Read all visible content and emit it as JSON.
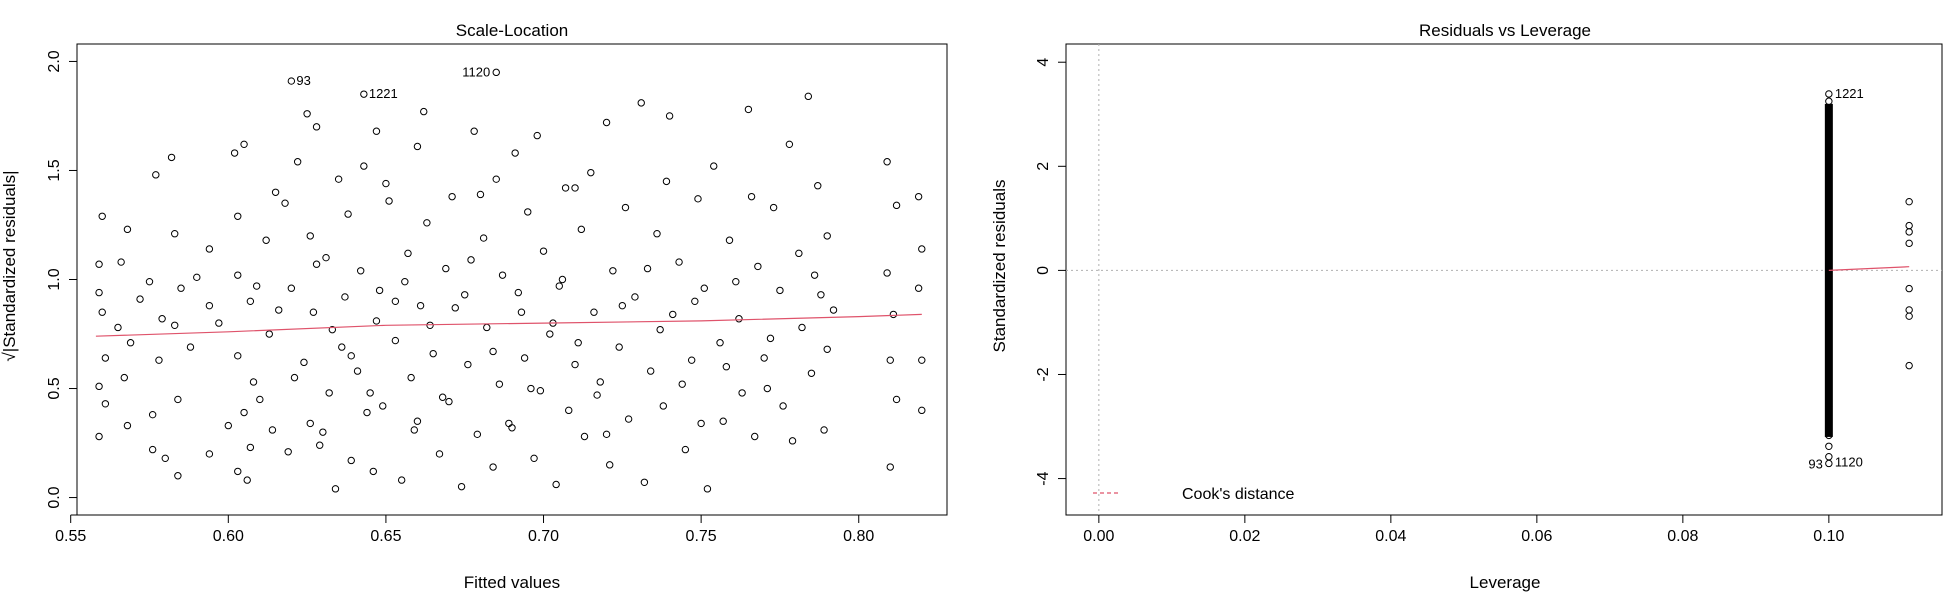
{
  "chart_data": [
    {
      "type": "scatter",
      "title": "Scale-Location",
      "xlabel": "Fitted values",
      "ylabel": "√|Standardized residuals|",
      "xlim": [
        0.552,
        0.828
      ],
      "ylim": [
        -0.08,
        2.08
      ],
      "xticks": [
        0.55,
        0.6,
        0.65,
        0.7,
        0.75,
        0.8
      ],
      "xtick_labels": [
        "0.55",
        "0.60",
        "0.65",
        "0.70",
        "0.75",
        "0.80"
      ],
      "yticks": [
        0.0,
        0.5,
        1.0,
        1.5,
        2.0
      ],
      "ytick_labels": [
        "0.0",
        "0.5",
        "1.0",
        "1.5",
        "2.0"
      ],
      "grid": false,
      "series": [
        {
          "points": [
            [
              0.559,
              1.07
            ],
            [
              0.559,
              0.94
            ],
            [
              0.559,
              0.51
            ],
            [
              0.559,
              0.28
            ],
            [
              0.56,
              1.29
            ],
            [
              0.56,
              0.85
            ],
            [
              0.561,
              0.64
            ],
            [
              0.561,
              0.43
            ],
            [
              0.566,
              1.08
            ],
            [
              0.567,
              0.55
            ],
            [
              0.568,
              0.33
            ],
            [
              0.568,
              1.23
            ],
            [
              0.569,
              0.71
            ],
            [
              0.575,
              0.99
            ],
            [
              0.576,
              0.38
            ],
            [
              0.576,
              0.22
            ],
            [
              0.577,
              1.48
            ],
            [
              0.578,
              0.63
            ],
            [
              0.579,
              0.82
            ],
            [
              0.58,
              0.18
            ],
            [
              0.582,
              1.56
            ],
            [
              0.583,
              1.21
            ],
            [
              0.583,
              0.79
            ],
            [
              0.584,
              0.45
            ],
            [
              0.584,
              0.1
            ],
            [
              0.585,
              0.96
            ],
            [
              0.594,
              1.14
            ],
            [
              0.594,
              0.88
            ],
            [
              0.594,
              0.2
            ],
            [
              0.602,
              1.58
            ],
            [
              0.603,
              1.29
            ],
            [
              0.603,
              1.02
            ],
            [
              0.603,
              0.65
            ],
            [
              0.603,
              0.12
            ],
            [
              0.605,
              1.62
            ],
            [
              0.605,
              0.39
            ],
            [
              0.606,
              0.08
            ],
            [
              0.607,
              0.9
            ],
            [
              0.607,
              0.23
            ],
            [
              0.608,
              0.53
            ],
            [
              0.612,
              1.18
            ],
            [
              0.613,
              0.75
            ],
            [
              0.614,
              0.31
            ],
            [
              0.618,
              1.35
            ],
            [
              0.619,
              0.21
            ],
            [
              0.62,
              0.96
            ],
            [
              0.621,
              0.55
            ],
            [
              0.622,
              1.54
            ],
            [
              0.624,
              0.62
            ],
            [
              0.625,
              1.76
            ],
            [
              0.626,
              1.2
            ],
            [
              0.626,
              0.34
            ],
            [
              0.627,
              0.85
            ],
            [
              0.628,
              1.7
            ],
            [
              0.629,
              0.24
            ],
            [
              0.631,
              1.1
            ],
            [
              0.632,
              0.48
            ],
            [
              0.634,
              0.04
            ],
            [
              0.635,
              1.46
            ],
            [
              0.636,
              0.69
            ],
            [
              0.637,
              0.92
            ],
            [
              0.638,
              1.3
            ],
            [
              0.639,
              0.17
            ],
            [
              0.641,
              0.58
            ],
            [
              0.642,
              1.04
            ],
            [
              0.643,
              1.52
            ],
            [
              0.644,
              0.39
            ],
            [
              0.646,
              0.12
            ],
            [
              0.647,
              0.81
            ],
            [
              0.647,
              1.68
            ],
            [
              0.648,
              0.95
            ],
            [
              0.649,
              0.42
            ],
            [
              0.651,
              1.36
            ],
            [
              0.653,
              0.72
            ],
            [
              0.655,
              0.08
            ],
            [
              0.657,
              1.12
            ],
            [
              0.658,
              0.55
            ],
            [
              0.659,
              0.31
            ],
            [
              0.66,
              1.61
            ],
            [
              0.661,
              0.88
            ],
            [
              0.662,
              1.77
            ],
            [
              0.663,
              1.26
            ],
            [
              0.665,
              0.66
            ],
            [
              0.667,
              0.2
            ],
            [
              0.669,
              1.05
            ],
            [
              0.67,
              0.44
            ],
            [
              0.671,
              1.38
            ],
            [
              0.674,
              0.05
            ],
            [
              0.675,
              0.93
            ],
            [
              0.676,
              0.61
            ],
            [
              0.678,
              1.68
            ],
            [
              0.679,
              0.29
            ],
            [
              0.681,
              1.19
            ],
            [
              0.682,
              0.78
            ],
            [
              0.684,
              0.14
            ],
            [
              0.685,
              1.46
            ],
            [
              0.686,
              0.52
            ],
            [
              0.687,
              1.02
            ],
            [
              0.689,
              0.34
            ],
            [
              0.691,
              1.58
            ],
            [
              0.693,
              0.85
            ],
            [
              0.694,
              0.64
            ],
            [
              0.695,
              1.31
            ],
            [
              0.697,
              0.18
            ],
            [
              0.698,
              1.66
            ],
            [
              0.699,
              0.49
            ],
            [
              0.7,
              1.13
            ],
            [
              0.702,
              0.75
            ],
            [
              0.704,
              0.06
            ],
            [
              0.705,
              0.97
            ],
            [
              0.707,
              1.42
            ],
            [
              0.708,
              0.4
            ],
            [
              0.71,
              0.61
            ],
            [
              0.712,
              1.23
            ],
            [
              0.713,
              0.28
            ],
            [
              0.715,
              1.49
            ],
            [
              0.716,
              0.85
            ],
            [
              0.718,
              0.53
            ],
            [
              0.72,
              1.72
            ],
            [
              0.721,
              0.15
            ],
            [
              0.722,
              1.04
            ],
            [
              0.724,
              0.69
            ],
            [
              0.726,
              1.33
            ],
            [
              0.727,
              0.36
            ],
            [
              0.729,
              0.92
            ],
            [
              0.731,
              1.81
            ],
            [
              0.732,
              0.07
            ],
            [
              0.734,
              0.58
            ],
            [
              0.736,
              1.21
            ],
            [
              0.738,
              0.42
            ],
            [
              0.74,
              1.75
            ],
            [
              0.741,
              0.84
            ],
            [
              0.743,
              1.08
            ],
            [
              0.745,
              0.22
            ],
            [
              0.747,
              0.63
            ],
            [
              0.749,
              1.37
            ],
            [
              0.751,
              0.96
            ],
            [
              0.752,
              0.04
            ],
            [
              0.754,
              1.52
            ],
            [
              0.756,
              0.71
            ],
            [
              0.757,
              0.35
            ],
            [
              0.759,
              1.18
            ],
            [
              0.762,
              0.82
            ],
            [
              0.763,
              0.48
            ],
            [
              0.765,
              1.78
            ],
            [
              0.767,
              0.28
            ],
            [
              0.768,
              1.06
            ],
            [
              0.77,
              0.64
            ],
            [
              0.773,
              1.33
            ],
            [
              0.775,
              0.95
            ],
            [
              0.776,
              0.42
            ],
            [
              0.778,
              1.62
            ],
            [
              0.779,
              0.26
            ],
            [
              0.781,
              1.12
            ],
            [
              0.782,
              0.78
            ],
            [
              0.784,
              1.84
            ],
            [
              0.785,
              0.57
            ],
            [
              0.787,
              1.43
            ],
            [
              0.788,
              0.93
            ],
            [
              0.789,
              0.31
            ],
            [
              0.79,
              1.2
            ],
            [
              0.79,
              0.68
            ],
            [
              0.809,
              1.54
            ],
            [
              0.809,
              1.03
            ],
            [
              0.81,
              0.63
            ],
            [
              0.81,
              0.14
            ],
            [
              0.811,
              0.84
            ],
            [
              0.812,
              1.34
            ],
            [
              0.812,
              0.45
            ],
            [
              0.819,
              1.38
            ],
            [
              0.819,
              0.96
            ],
            [
              0.82,
              0.63
            ],
            [
              0.82,
              0.4
            ],
            [
              0.82,
              1.14
            ],
            [
              0.62,
              1.91
            ],
            [
              0.643,
              1.85
            ],
            [
              0.685,
              1.95
            ],
            [
              0.565,
              0.78
            ],
            [
              0.572,
              0.91
            ],
            [
              0.588,
              0.69
            ],
            [
              0.597,
              0.8
            ],
            [
              0.609,
              0.97
            ],
            [
              0.616,
              0.86
            ],
            [
              0.633,
              0.77
            ],
            [
              0.639,
              0.65
            ],
            [
              0.653,
              0.9
            ],
            [
              0.664,
              0.79
            ],
            [
              0.672,
              0.87
            ],
            [
              0.684,
              0.67
            ],
            [
              0.692,
              0.94
            ],
            [
              0.703,
              0.8
            ],
            [
              0.711,
              0.71
            ],
            [
              0.725,
              0.88
            ],
            [
              0.737,
              0.77
            ],
            [
              0.748,
              0.9
            ],
            [
              0.758,
              0.6
            ],
            [
              0.772,
              0.73
            ],
            [
              0.792,
              0.86
            ],
            [
              0.59,
              1.01
            ],
            [
              0.628,
              1.07
            ],
            [
              0.656,
              0.99
            ],
            [
              0.677,
              1.09
            ],
            [
              0.706,
              1.0
            ],
            [
              0.733,
              1.05
            ],
            [
              0.761,
              0.99
            ],
            [
              0.786,
              1.02
            ],
            [
              0.61,
              0.45
            ],
            [
              0.645,
              0.48
            ],
            [
              0.668,
              0.46
            ],
            [
              0.696,
              0.5
            ],
            [
              0.717,
              0.47
            ],
            [
              0.744,
              0.52
            ],
            [
              0.771,
              0.5
            ],
            [
              0.6,
              0.33
            ],
            [
              0.63,
              0.3
            ],
            [
              0.66,
              0.35
            ],
            [
              0.69,
              0.32
            ],
            [
              0.72,
              0.29
            ],
            [
              0.75,
              0.34
            ],
            [
              0.615,
              1.4
            ],
            [
              0.65,
              1.44
            ],
            [
              0.68,
              1.39
            ],
            [
              0.71,
              1.42
            ],
            [
              0.739,
              1.45
            ],
            [
              0.766,
              1.38
            ]
          ]
        }
      ],
      "smoother": {
        "x": [
          0.558,
          0.6,
          0.65,
          0.7,
          0.75,
          0.8,
          0.82
        ],
        "y": [
          0.74,
          0.76,
          0.79,
          0.8,
          0.81,
          0.83,
          0.84
        ]
      },
      "annotations": [
        {
          "label": "93",
          "x": 0.62,
          "y": 1.91
        },
        {
          "label": "1221",
          "x": 0.643,
          "y": 1.85
        },
        {
          "label": "1120",
          "x": 0.685,
          "y": 1.95
        }
      ]
    },
    {
      "type": "scatter",
      "title": "Residuals vs Leverage",
      "xlabel": "Leverage",
      "ylabel": "Standardized residuals",
      "xlim": [
        -0.0045,
        0.1155
      ],
      "ylim": [
        -4.7,
        4.35
      ],
      "xticks": [
        0.0,
        0.02,
        0.04,
        0.06,
        0.08,
        0.1
      ],
      "xtick_labels": [
        "0.00",
        "0.02",
        "0.04",
        "0.06",
        "0.08",
        "0.10"
      ],
      "yticks": [
        -4,
        -2,
        0,
        2,
        4
      ],
      "ytick_labels": [
        "-4",
        "-2",
        "0",
        "2",
        "4"
      ],
      "grid": false,
      "legend": {
        "position": "bottom-left",
        "label": "Cook's distance"
      },
      "column": {
        "x": 0.1,
        "y_min": -3.2,
        "y_max": 3.2
      },
      "series": [
        {
          "points": [
            [
              0.1,
              3.39
            ],
            [
              0.1,
              3.25
            ],
            [
              0.1,
              3.1
            ],
            [
              0.1,
              2.95
            ],
            [
              0.1,
              2.82
            ],
            [
              0.1,
              2.7
            ],
            [
              0.1,
              2.58
            ],
            [
              0.1,
              2.46
            ],
            [
              0.1,
              -2.62
            ],
            [
              0.1,
              -2.78
            ],
            [
              0.1,
              -2.93
            ],
            [
              0.1,
              -3.07
            ],
            [
              0.1,
              -3.17
            ],
            [
              0.1,
              -3.38
            ],
            [
              0.1,
              -3.58
            ],
            [
              0.1,
              -3.71
            ],
            [
              0.111,
              1.32
            ],
            [
              0.111,
              0.86
            ],
            [
              0.111,
              0.74
            ],
            [
              0.111,
              0.52
            ],
            [
              0.111,
              -0.35
            ],
            [
              0.111,
              -0.76
            ],
            [
              0.111,
              -0.88
            ],
            [
              0.111,
              -1.83
            ]
          ]
        }
      ],
      "smoother": {
        "x": [
          0.1,
          0.111
        ],
        "y": [
          0.0,
          0.07
        ]
      },
      "annotations": [
        {
          "label": "1221",
          "x": 0.1,
          "y": 3.39
        },
        {
          "label": "93",
          "x": 0.1,
          "y": -3.71
        },
        {
          "label": "1120",
          "x": 0.1,
          "y": -3.58
        }
      ]
    }
  ]
}
